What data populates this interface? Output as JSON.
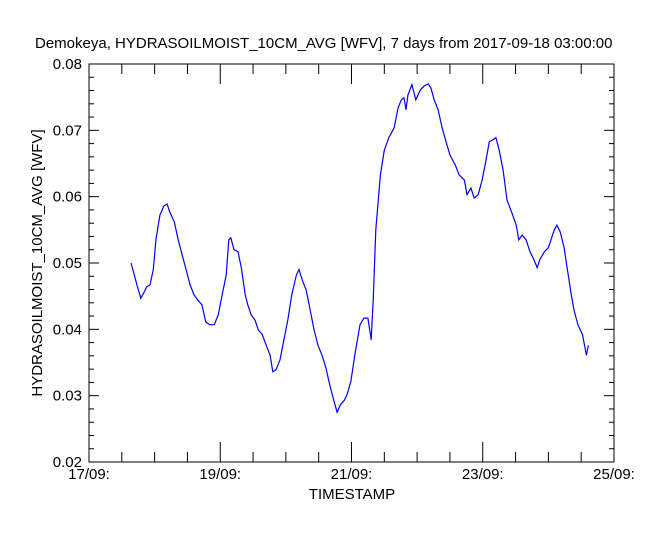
{
  "chart_data": {
    "type": "line",
    "title": "Demokeya, HYDRASOILMOIST_10CM_AVG [WFV], 7 days from  2017-09-18 03:00:00",
    "xlabel": "TIMESTAMP",
    "ylabel": "HYDRASOILMOIST_10CM_AVG [WFV]",
    "xlim": [
      17,
      25
    ],
    "ylim": [
      0.02,
      0.08
    ],
    "x_unit": "day of September 2017",
    "x_ticks": [
      17,
      19,
      21,
      23,
      25
    ],
    "x_tick_labels": [
      "17/09:",
      "19/09:",
      "21/09:",
      "23/09:",
      "25/09:"
    ],
    "y_ticks": [
      0.02,
      0.03,
      0.04,
      0.05,
      0.06,
      0.07,
      0.08
    ],
    "y_tick_labels": [
      "0.02",
      "0.03",
      "0.04",
      "0.05",
      "0.06",
      "0.07",
      "0.08"
    ],
    "grid": false,
    "line_color": "#0000ff",
    "series": [
      {
        "name": "HYDRASOILMOIST_10CM_AVG",
        "x": [
          17.64,
          17.69,
          17.73,
          17.79,
          17.84,
          17.88,
          17.93,
          17.98,
          18.02,
          18.08,
          18.14,
          18.19,
          18.23,
          18.3,
          18.36,
          18.42,
          18.48,
          18.54,
          18.6,
          18.66,
          18.72,
          18.78,
          18.84,
          18.91,
          18.97,
          19.03,
          19.09,
          19.13,
          19.16,
          19.21,
          19.27,
          19.32,
          19.38,
          19.42,
          19.47,
          19.53,
          19.58,
          19.64,
          19.7,
          19.76,
          19.8,
          19.85,
          19.91,
          19.97,
          20.03,
          20.09,
          20.16,
          20.2,
          20.25,
          20.31,
          20.37,
          20.43,
          20.49,
          20.55,
          20.61,
          20.67,
          20.73,
          20.78,
          20.83,
          20.89,
          20.93,
          20.99,
          21.05,
          21.13,
          21.19,
          21.25,
          21.3,
          21.33,
          21.37,
          21.44,
          21.5,
          21.57,
          21.65,
          21.71,
          21.76,
          21.8,
          21.83,
          21.86,
          21.92,
          21.98,
          22.05,
          22.11,
          22.17,
          22.21,
          22.26,
          22.32,
          22.38,
          22.44,
          22.5,
          22.58,
          22.64,
          22.72,
          22.76,
          22.82,
          22.87,
          22.93,
          22.99,
          23.05,
          23.1,
          23.16,
          23.2,
          23.25,
          23.31,
          23.37,
          23.45,
          23.51,
          23.55,
          23.6,
          23.66,
          23.72,
          23.78,
          23.83,
          23.87,
          23.94,
          24.0,
          24.04,
          24.09,
          24.13,
          24.18,
          24.24,
          24.29,
          24.35,
          24.39,
          24.45,
          24.52,
          24.58,
          24.61
        ],
        "y": [
          0.05,
          0.0482,
          0.0467,
          0.0447,
          0.0456,
          0.0464,
          0.0467,
          0.049,
          0.0535,
          0.0572,
          0.0586,
          0.0589,
          0.0577,
          0.0562,
          0.0535,
          0.0512,
          0.049,
          0.0467,
          0.0452,
          0.0444,
          0.0437,
          0.0411,
          0.0407,
          0.0407,
          0.0422,
          0.0452,
          0.0482,
          0.0535,
          0.0538,
          0.052,
          0.0517,
          0.0493,
          0.0452,
          0.0437,
          0.0422,
          0.0414,
          0.0399,
          0.0392,
          0.0376,
          0.0361,
          0.0336,
          0.0339,
          0.0354,
          0.0384,
          0.0414,
          0.0452,
          0.0482,
          0.049,
          0.0474,
          0.0459,
          0.0429,
          0.0399,
          0.0376,
          0.0361,
          0.0342,
          0.0316,
          0.0293,
          0.0275,
          0.0286,
          0.0293,
          0.0301,
          0.0321,
          0.0361,
          0.0407,
          0.0417,
          0.0417,
          0.0384,
          0.0444,
          0.055,
          0.0633,
          0.067,
          0.0689,
          0.0704,
          0.0734,
          0.0746,
          0.0749,
          0.0731,
          0.0753,
          0.0769,
          0.0746,
          0.0761,
          0.0767,
          0.077,
          0.0764,
          0.0746,
          0.0731,
          0.0704,
          0.0683,
          0.0663,
          0.0648,
          0.0633,
          0.0625,
          0.0603,
          0.0613,
          0.0598,
          0.0603,
          0.0625,
          0.0655,
          0.0683,
          0.0686,
          0.0689,
          0.067,
          0.064,
          0.0595,
          0.0574,
          0.0557,
          0.0535,
          0.0542,
          0.0535,
          0.0517,
          0.0505,
          0.0493,
          0.0505,
          0.0517,
          0.0523,
          0.0535,
          0.055,
          0.0557,
          0.0547,
          0.0523,
          0.049,
          0.0452,
          0.0429,
          0.0407,
          0.0392,
          0.0361,
          0.0376
        ]
      }
    ]
  }
}
